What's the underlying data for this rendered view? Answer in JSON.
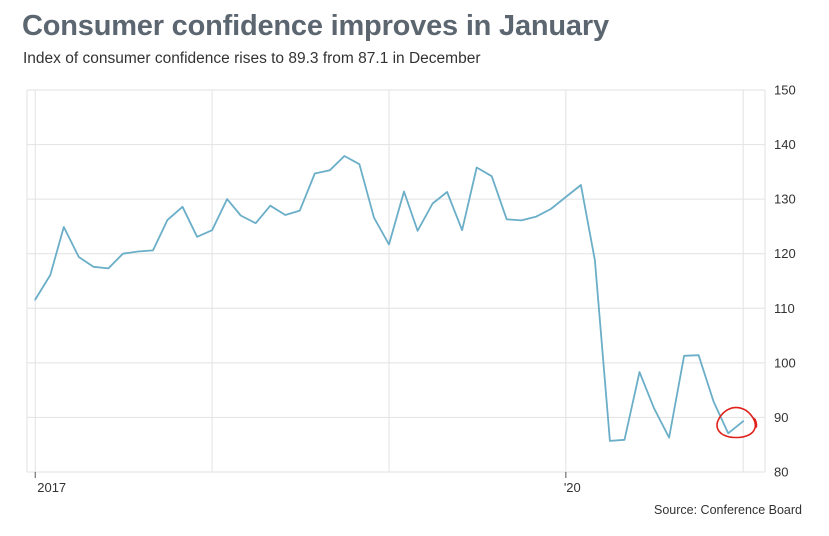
{
  "title": "Consumer confidence improves in January",
  "subtitle": "Index of consumer confidence rises to 89.3 from 87.1 in December",
  "source": "Source: Conference Board",
  "colors": {
    "line": "#6aaec8",
    "title": "#5c6670",
    "grid": "#e2e2e2",
    "highlight": "#e0201b"
  },
  "chart_data": {
    "type": "line",
    "title": "Consumer confidence improves in January",
    "subtitle": "Index of consumer confidence rises to 89.3 from 87.1 in December",
    "xlabel": "",
    "ylabel": "",
    "x_tick_labels": [
      {
        "date": "2017-01",
        "label": "2017"
      },
      {
        "date": "2020-01",
        "label": "'20"
      }
    ],
    "y_ticks": [
      80,
      90,
      100,
      110,
      120,
      130,
      140,
      150
    ],
    "ylim": [
      80,
      150
    ],
    "xlim": [
      "2016-12-15",
      "2021-02-15"
    ],
    "y_axis_side": "right",
    "grid": true,
    "series": [
      {
        "dates": [
          "2017-01",
          "2017-02",
          "2017-03",
          "2017-04",
          "2017-05",
          "2017-06",
          "2017-07",
          "2017-08",
          "2017-09",
          "2017-10",
          "2017-11",
          "2017-12",
          "2018-01",
          "2018-02",
          "2018-03",
          "2018-04",
          "2018-05",
          "2018-06",
          "2018-07",
          "2018-08",
          "2018-09",
          "2018-10",
          "2018-11",
          "2018-12",
          "2019-01",
          "2019-02",
          "2019-03",
          "2019-04",
          "2019-05",
          "2019-06",
          "2019-07",
          "2019-08",
          "2019-09",
          "2019-10",
          "2019-11",
          "2019-12",
          "2020-01",
          "2020-02",
          "2020-03",
          "2020-04",
          "2020-05",
          "2020-06",
          "2020-07",
          "2020-08",
          "2020-09",
          "2020-10",
          "2020-11",
          "2020-12",
          "2021-01"
        ],
        "values": [
          111.6,
          116.1,
          124.9,
          119.4,
          117.6,
          117.3,
          120.0,
          120.4,
          120.6,
          126.2,
          128.6,
          123.1,
          124.3,
          130.0,
          127.0,
          125.6,
          128.8,
          127.1,
          127.9,
          134.7,
          135.3,
          137.9,
          136.4,
          126.6,
          121.7,
          131.4,
          124.2,
          129.2,
          131.3,
          124.3,
          135.8,
          134.2,
          126.3,
          126.1,
          126.8,
          128.2,
          130.4,
          132.6,
          118.8,
          85.7,
          85.9,
          98.3,
          91.7,
          86.3,
          101.3,
          101.4,
          92.9,
          87.1,
          89.3
        ]
      }
    ],
    "annotations": [
      {
        "type": "circle",
        "date": "2021-01",
        "value": 89.3
      }
    ]
  }
}
